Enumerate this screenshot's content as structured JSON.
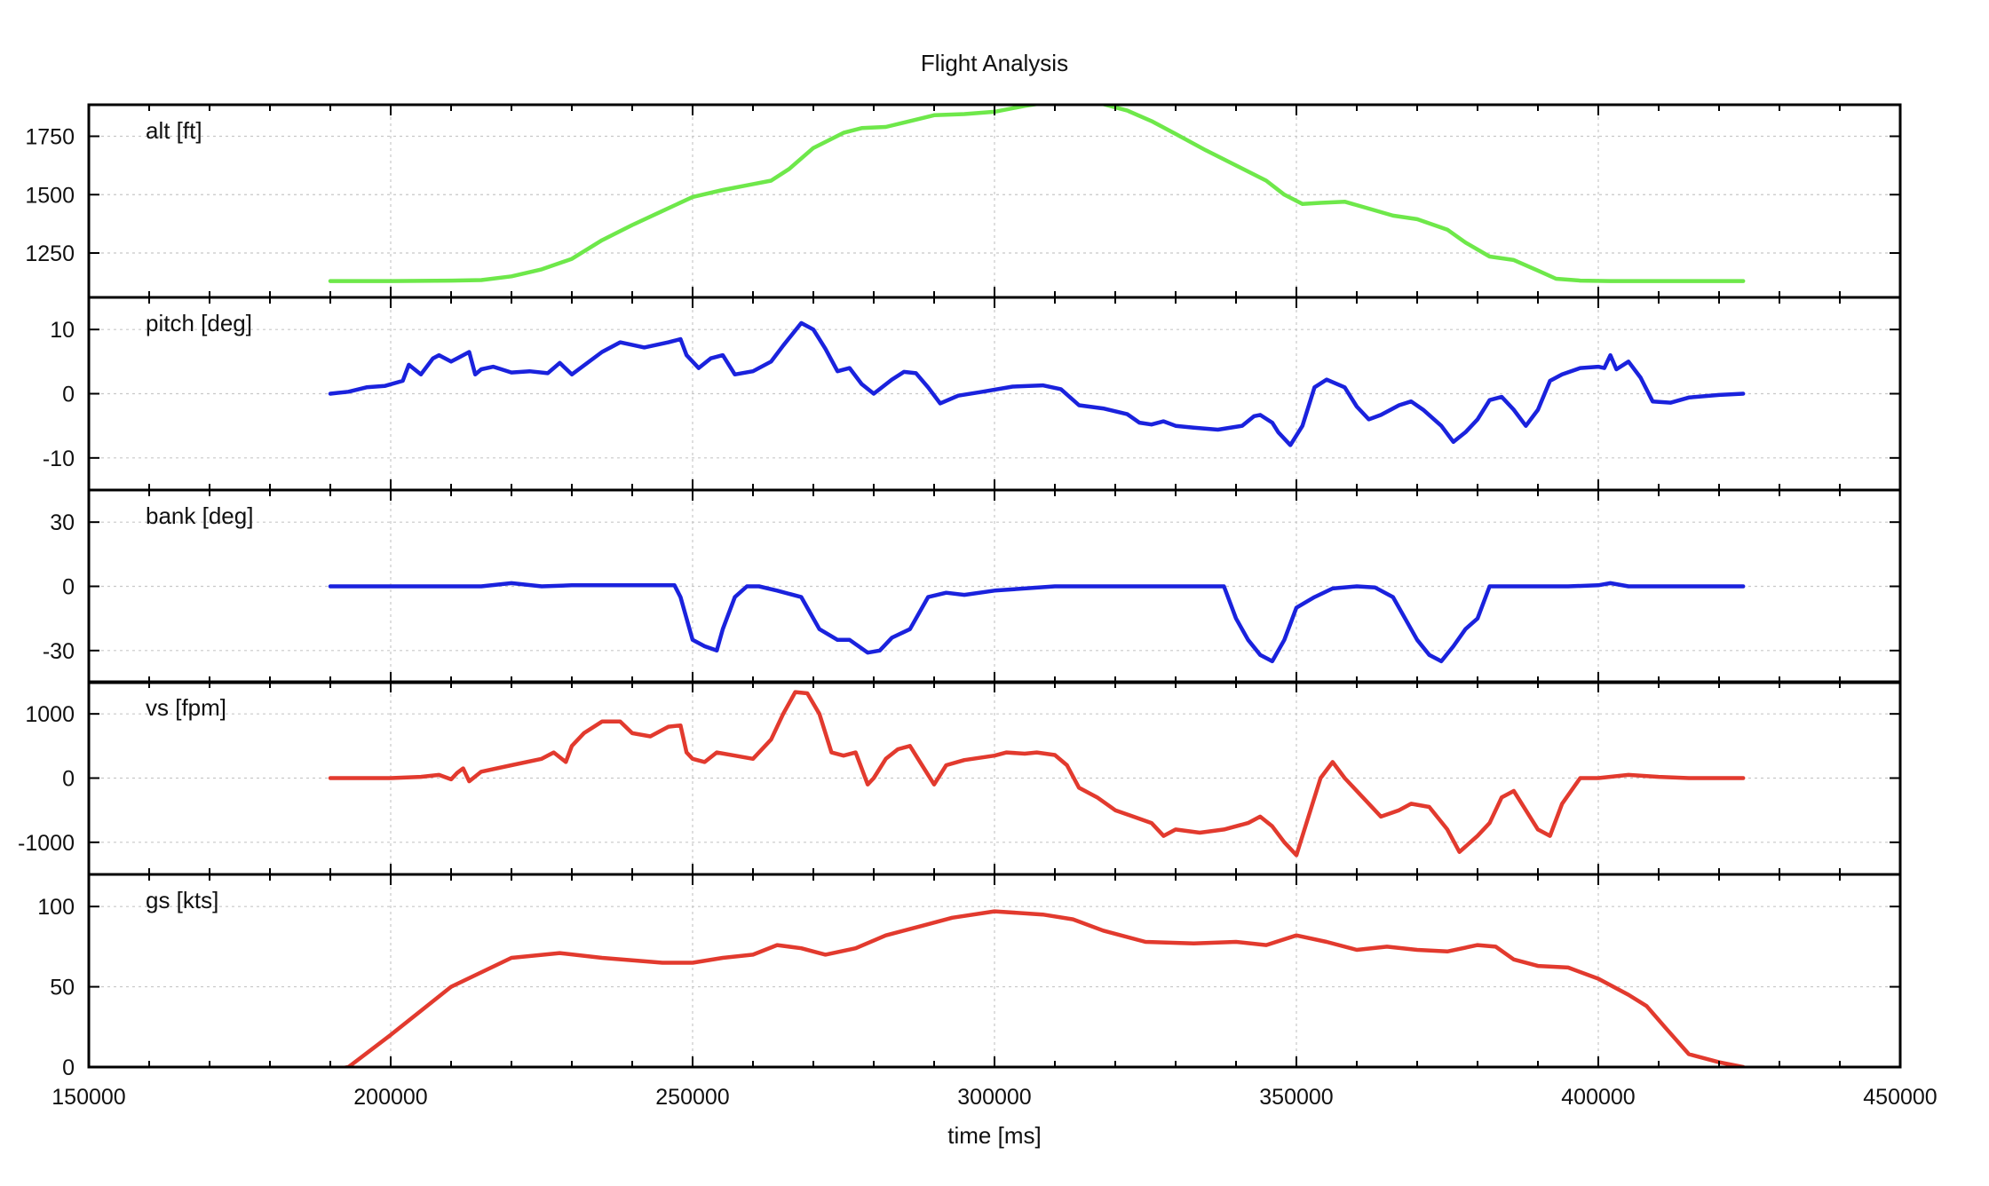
{
  "chart_data": {
    "type": "line",
    "title": "Flight Analysis",
    "xlabel": "time [ms]",
    "xlim": [
      150000,
      450000
    ],
    "xticks": [
      150000,
      200000,
      250000,
      300000,
      350000,
      400000,
      450000
    ],
    "grid": true,
    "panels": [
      {
        "id": "alt",
        "label": "alt [ft]",
        "color": "#6ee84a",
        "ylim": [
          1060,
          1885
        ],
        "yticks": [
          1250,
          1500,
          1750
        ],
        "series": {
          "x": [
            190000,
            200000,
            210000,
            215000,
            220000,
            225000,
            230000,
            235000,
            240000,
            245000,
            250000,
            255000,
            260000,
            263000,
            266000,
            270000,
            275000,
            278000,
            282000,
            286000,
            290000,
            295000,
            300000,
            305000,
            310000,
            313000,
            317000,
            322000,
            326000,
            330000,
            335000,
            340000,
            345000,
            348000,
            351000,
            354000,
            358000,
            362000,
            366000,
            370000,
            375000,
            378000,
            382000,
            386000,
            390000,
            393000,
            397000,
            402000,
            410000,
            424000
          ],
          "y": [
            1130,
            1130,
            1132,
            1134,
            1150,
            1180,
            1225,
            1305,
            1370,
            1430,
            1490,
            1520,
            1545,
            1560,
            1610,
            1700,
            1765,
            1785,
            1790,
            1815,
            1840,
            1845,
            1855,
            1880,
            1900,
            1905,
            1895,
            1860,
            1815,
            1760,
            1690,
            1625,
            1560,
            1500,
            1460,
            1465,
            1470,
            1440,
            1410,
            1395,
            1350,
            1295,
            1235,
            1220,
            1175,
            1140,
            1132,
            1130,
            1130,
            1130
          ]
        }
      },
      {
        "id": "pitch",
        "label": "pitch [deg]",
        "color": "#1a22dd",
        "ylim": [
          -15,
          15
        ],
        "yticks": [
          -10,
          0,
          10
        ],
        "series": {
          "x": [
            190000,
            193000,
            196000,
            199000,
            202000,
            203000,
            205000,
            207000,
            208000,
            210000,
            211000,
            213000,
            214000,
            215000,
            217000,
            220000,
            223000,
            226000,
            228000,
            230000,
            235000,
            238000,
            242000,
            246000,
            248000,
            249000,
            251000,
            253000,
            255000,
            257000,
            260000,
            263000,
            265000,
            268000,
            270000,
            272000,
            274000,
            276000,
            278000,
            280000,
            283000,
            285000,
            287000,
            289000,
            291000,
            294000,
            298000,
            303000,
            308000,
            311000,
            314000,
            318000,
            322000,
            324000,
            326000,
            328000,
            330000,
            333000,
            337000,
            341000,
            343000,
            344000,
            346000,
            347000,
            349000,
            351000,
            353000,
            355000,
            358000,
            360000,
            362000,
            364000,
            367000,
            369000,
            371000,
            374000,
            376000,
            378000,
            380000,
            382000,
            384000,
            386000,
            388000,
            390000,
            392000,
            394000,
            397000,
            400000,
            401000,
            402000,
            403000,
            405000,
            407000,
            409000,
            412000,
            415000,
            420000,
            424000
          ],
          "y": [
            0,
            0.3,
            1,
            1.2,
            2,
            4.5,
            3,
            5.5,
            6,
            5,
            5.5,
            6.5,
            3,
            3.8,
            4.2,
            3.3,
            3.5,
            3.2,
            4.8,
            3,
            6.5,
            8,
            7.2,
            8,
            8.5,
            6,
            4,
            5.5,
            6,
            3,
            3.5,
            5,
            7.5,
            11,
            10,
            7,
            3.5,
            4,
            1.5,
            0,
            2.2,
            3.4,
            3.2,
            1,
            -1.5,
            -0.3,
            0.3,
            1.1,
            1.3,
            0.7,
            -1.8,
            -2.3,
            -3.2,
            -4.5,
            -4.8,
            -4.3,
            -5,
            -5.3,
            -5.6,
            -5,
            -3.5,
            -3.3,
            -4.5,
            -6,
            -8,
            -5,
            1,
            2.2,
            1,
            -2,
            -4,
            -3.3,
            -1.8,
            -1.2,
            -2.5,
            -5,
            -7.5,
            -6,
            -4,
            -1,
            -0.5,
            -2.5,
            -5,
            -2.5,
            2,
            3,
            4,
            4.2,
            4,
            6,
            3.8,
            5,
            2.5,
            -1.2,
            -1.4,
            -0.6,
            -0.2,
            0
          ]
        }
      },
      {
        "id": "bank",
        "label": "bank [deg]",
        "color": "#1a22dd",
        "ylim": [
          -45,
          45
        ],
        "yticks": [
          -30,
          0,
          30
        ],
        "series": {
          "x": [
            190000,
            200000,
            205000,
            210000,
            215000,
            220000,
            225000,
            230000,
            240000,
            247000,
            248000,
            249000,
            250000,
            252000,
            254000,
            255000,
            257000,
            259000,
            261000,
            264000,
            268000,
            271000,
            274000,
            276000,
            279000,
            281000,
            283000,
            286000,
            289000,
            292000,
            295000,
            300000,
            310000,
            315000,
            320000,
            330000,
            338000,
            340000,
            342000,
            344000,
            346000,
            348000,
            350000,
            353000,
            356000,
            360000,
            363000,
            366000,
            368000,
            370000,
            372000,
            374000,
            376000,
            378000,
            380000,
            382000,
            384000,
            390000,
            395000,
            400000,
            402000,
            405000,
            410000,
            424000
          ],
          "y": [
            0,
            0,
            0,
            0,
            0,
            1.5,
            0,
            0.5,
            0.5,
            0.5,
            -5,
            -15,
            -25,
            -28,
            -30,
            -20,
            -5,
            0,
            0,
            -2,
            -5,
            -20,
            -25,
            -25,
            -31,
            -30,
            -24,
            -20,
            -5,
            -3,
            -4,
            -2,
            0,
            0,
            0,
            0,
            0,
            -15,
            -25,
            -32,
            -35,
            -25,
            -10,
            -5,
            -1,
            0,
            -0.5,
            -5,
            -15,
            -25,
            -32,
            -35,
            -28,
            -20,
            -15,
            0,
            0,
            0,
            0,
            0.5,
            1.5,
            0,
            0,
            0
          ]
        }
      },
      {
        "id": "vs",
        "label": "vs [fpm]",
        "color": "#e23a2e",
        "ylim": [
          -1500,
          1500
        ],
        "yticks": [
          -1000,
          0,
          1000
        ],
        "series": {
          "x": [
            190000,
            200000,
            205000,
            208000,
            210000,
            211000,
            212000,
            213000,
            215000,
            220000,
            225000,
            227000,
            229000,
            230000,
            232000,
            235000,
            238000,
            240000,
            243000,
            246000,
            248000,
            249000,
            250000,
            252000,
            254000,
            257000,
            260000,
            263000,
            265000,
            267000,
            269000,
            271000,
            273000,
            275000,
            277000,
            279000,
            280000,
            282000,
            284000,
            286000,
            288000,
            290000,
            292000,
            295000,
            300000,
            302000,
            305000,
            307000,
            310000,
            312000,
            314000,
            317000,
            320000,
            323000,
            326000,
            328000,
            330000,
            334000,
            338000,
            342000,
            344000,
            346000,
            348000,
            350000,
            352000,
            354000,
            356000,
            358000,
            361000,
            364000,
            367000,
            369000,
            372000,
            375000,
            377000,
            380000,
            382000,
            384000,
            386000,
            388000,
            390000,
            392000,
            394000,
            397000,
            400000,
            405000,
            410000,
            415000,
            424000
          ],
          "y": [
            0,
            0,
            20,
            50,
            -20,
            80,
            150,
            -50,
            100,
            200,
            300,
            400,
            250,
            500,
            700,
            880,
            880,
            700,
            650,
            800,
            820,
            400,
            300,
            250,
            400,
            350,
            300,
            600,
            1000,
            1340,
            1320,
            1000,
            400,
            350,
            400,
            -100,
            0,
            300,
            450,
            500,
            200,
            -100,
            200,
            280,
            350,
            400,
            380,
            400,
            360,
            200,
            -150,
            -300,
            -500,
            -600,
            -700,
            -900,
            -800,
            -850,
            -800,
            -700,
            -600,
            -750,
            -1000,
            -1200,
            -600,
            0,
            250,
            0,
            -300,
            -600,
            -500,
            -400,
            -450,
            -800,
            -1150,
            -900,
            -700,
            -300,
            -200,
            -500,
            -800,
            -900,
            -400,
            0,
            0,
            50,
            20,
            0,
            0
          ]
        }
      },
      {
        "id": "gs",
        "label": "gs [kts]",
        "color": "#e23a2e",
        "ylim": [
          0,
          120
        ],
        "yticks": [
          0,
          50,
          100
        ],
        "series": {
          "x": [
            190000,
            193000,
            200000,
            210000,
            220000,
            228000,
            235000,
            245000,
            250000,
            255000,
            260000,
            264000,
            268000,
            272000,
            277000,
            282000,
            288000,
            293000,
            300000,
            308000,
            313000,
            318000,
            325000,
            333000,
            340000,
            345000,
            350000,
            355000,
            360000,
            365000,
            370000,
            375000,
            380000,
            383000,
            386000,
            390000,
            395000,
            400000,
            405000,
            408000,
            411000,
            415000,
            420000,
            424000
          ],
          "y": [
            -2,
            0,
            20,
            50,
            68,
            71,
            68,
            65,
            65,
            68,
            70,
            76,
            74,
            70,
            74,
            82,
            88,
            93,
            97,
            95,
            92,
            85,
            78,
            77,
            78,
            76,
            82,
            78,
            73,
            75,
            73,
            72,
            76,
            75,
            67,
            63,
            62,
            55,
            45,
            38,
            25,
            8,
            3,
            0
          ]
        }
      }
    ]
  }
}
